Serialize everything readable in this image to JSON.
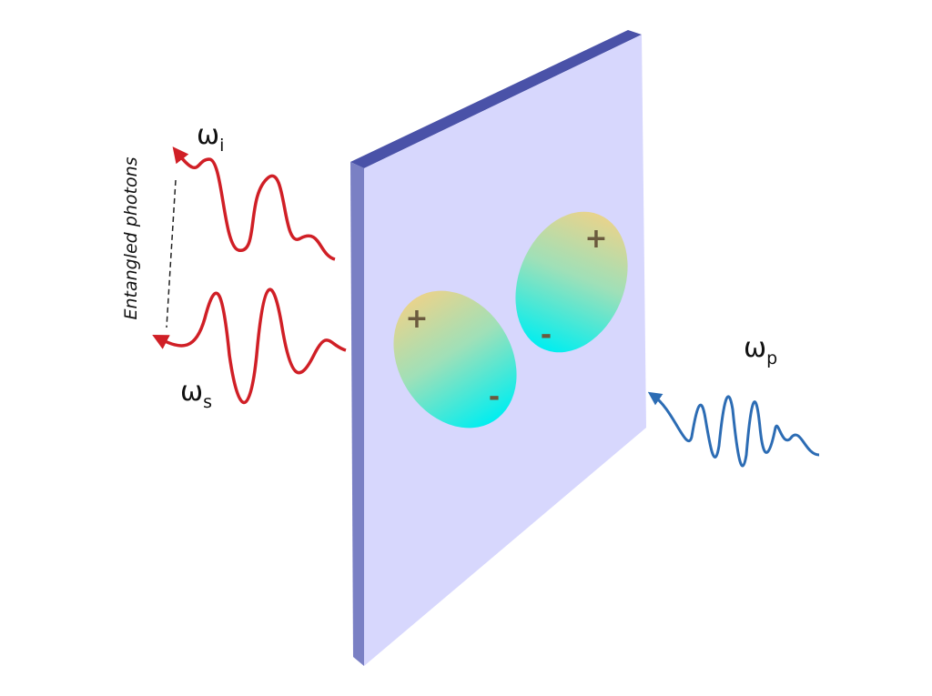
{
  "labels": {
    "idler": {
      "symbol": "ω",
      "subscript": "i"
    },
    "signal": {
      "symbol": "ω",
      "subscript": "s"
    },
    "pump": {
      "symbol": "ω",
      "subscript": "p"
    },
    "entangled": "Entangled photons"
  },
  "dipoles": [
    {
      "plus": "+",
      "minus": "-"
    },
    {
      "plus": "+",
      "minus": "-"
    }
  ]
}
